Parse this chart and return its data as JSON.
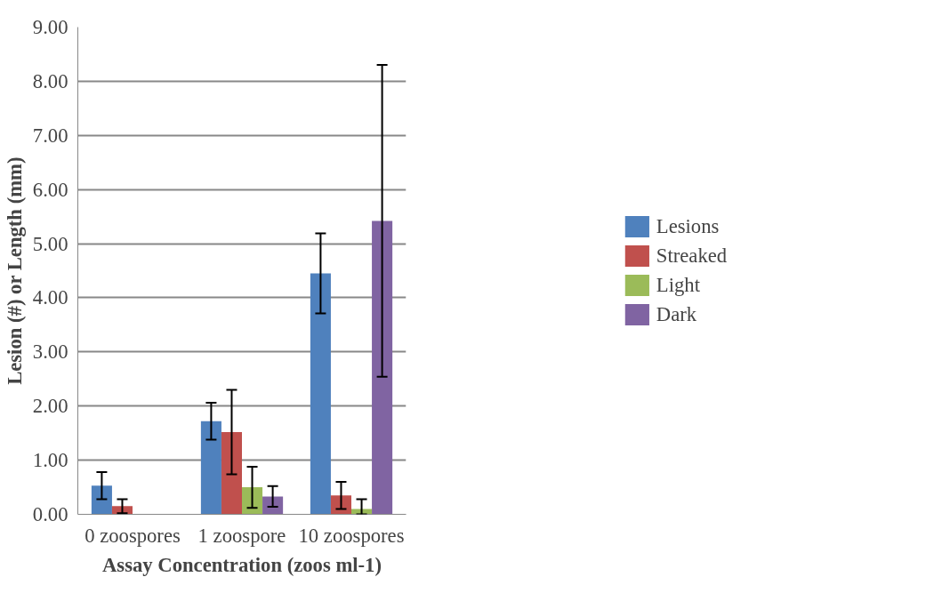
{
  "chart_data": {
    "type": "bar",
    "xlabel": "Assay Concentration (zoos ml-1)",
    "ylabel": "Lesion (#) or Length (mm)",
    "categories": [
      "0 zoospores",
      "1 zoospore",
      "10 zoospores"
    ],
    "series": [
      {
        "name": "Lesions",
        "color": "#4f81bd",
        "values": [
          0.53,
          1.72,
          4.45
        ],
        "errors": [
          0.25,
          0.34,
          0.74
        ]
      },
      {
        "name": "Streaked",
        "color": "#c0504d",
        "values": [
          0.15,
          1.52,
          0.35
        ],
        "errors": [
          0.13,
          0.78,
          0.25
        ]
      },
      {
        "name": "Light",
        "color": "#9bbb59",
        "values": [
          0,
          0.5,
          0.1
        ],
        "errors": [
          null,
          0.38,
          [
            0,
            0.28
          ]
        ]
      },
      {
        "name": "Dark",
        "color": "#8064a2",
        "values": [
          0,
          0.33,
          5.42
        ],
        "errors": [
          null,
          0.19,
          2.88
        ]
      }
    ],
    "ylim": [
      0,
      9
    ],
    "yticks": [
      {
        "value": 0,
        "label": "0.00"
      },
      {
        "value": 1,
        "label": "1.00"
      },
      {
        "value": 2,
        "label": "2.00"
      },
      {
        "value": 3,
        "label": "3.00"
      },
      {
        "value": 4,
        "label": "4.00"
      },
      {
        "value": 5,
        "label": "5.00"
      },
      {
        "value": 6,
        "label": "6.00"
      },
      {
        "value": 7,
        "label": "7.00"
      },
      {
        "value": 8,
        "label": "8.00"
      },
      {
        "value": 9,
        "label": "9.00"
      }
    ],
    "grid": "y",
    "legend": "right"
  }
}
